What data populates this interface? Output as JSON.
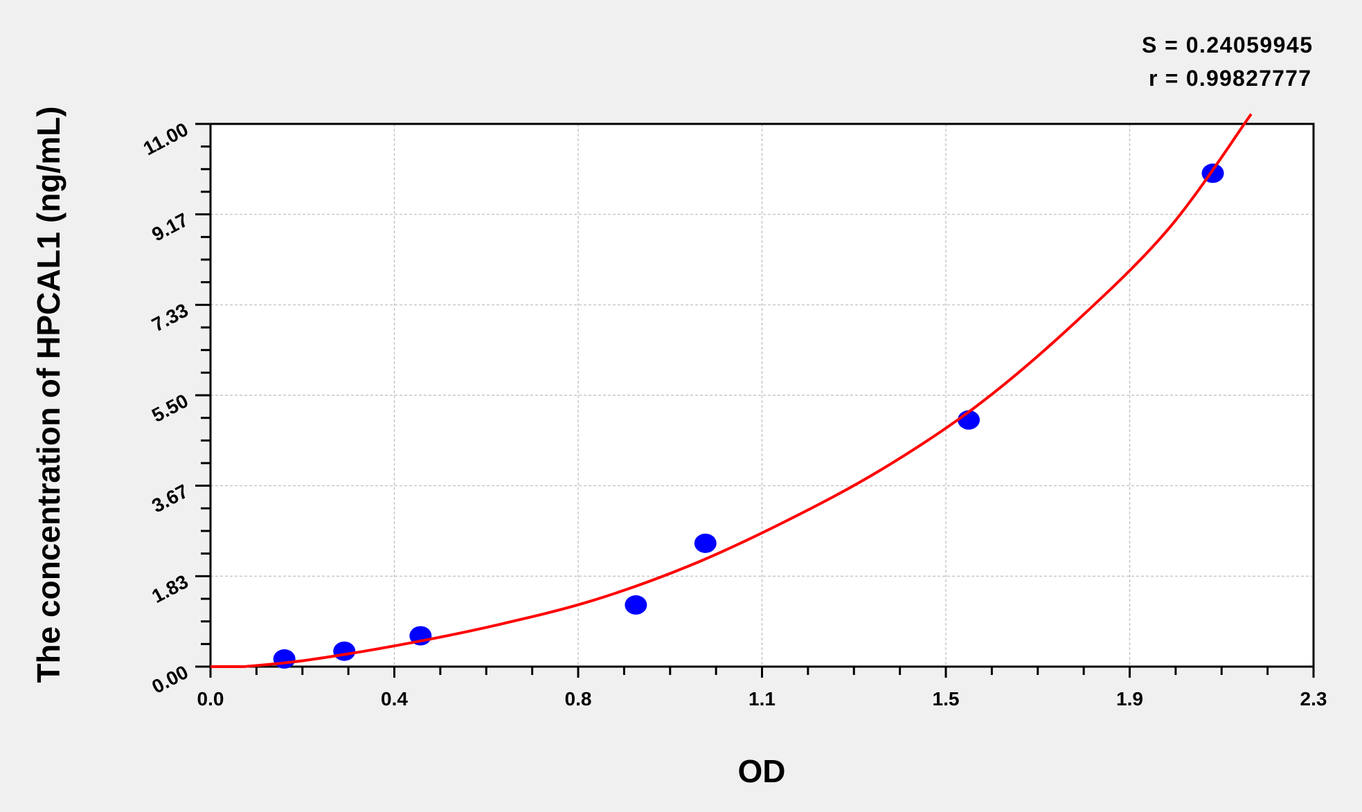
{
  "chart_data": {
    "type": "scatter",
    "xlabel": "OD",
    "ylabel": "The concentration of HPCAL1 (ng/mL)",
    "xlim": [
      0,
      2.3
    ],
    "ylim": [
      0,
      11
    ],
    "x_tick_labels": [
      "0.0",
      "0.4",
      "0.8",
      "1.1",
      "1.5",
      "1.9",
      "2.3"
    ],
    "y_tick_labels": [
      "0.00",
      "1.83",
      "3.67",
      "5.50",
      "7.33",
      "9.17",
      "11.00"
    ],
    "grid": true,
    "annotations": [
      "S = 0.24059945",
      "r = 0.99827777"
    ],
    "points": {
      "x": [
        0.154,
        0.279,
        0.438,
        0.887,
        1.032,
        1.581,
        2.09
      ],
      "y": [
        0.156,
        0.3125,
        0.625,
        1.25,
        2.5,
        5,
        10
      ],
      "color": "#0000ff"
    },
    "fit_curve": {
      "x": [
        0.07,
        0.2,
        0.4,
        0.6,
        0.8,
        1.0,
        1.2,
        1.4,
        1.6,
        1.8,
        2.0,
        2.17
      ],
      "y": [
        0,
        0.13,
        0.45,
        0.85,
        1.35,
        2.05,
        2.95,
        4.0,
        5.3,
        6.95,
        8.9,
        11.2
      ],
      "color": "#ff0000"
    }
  }
}
